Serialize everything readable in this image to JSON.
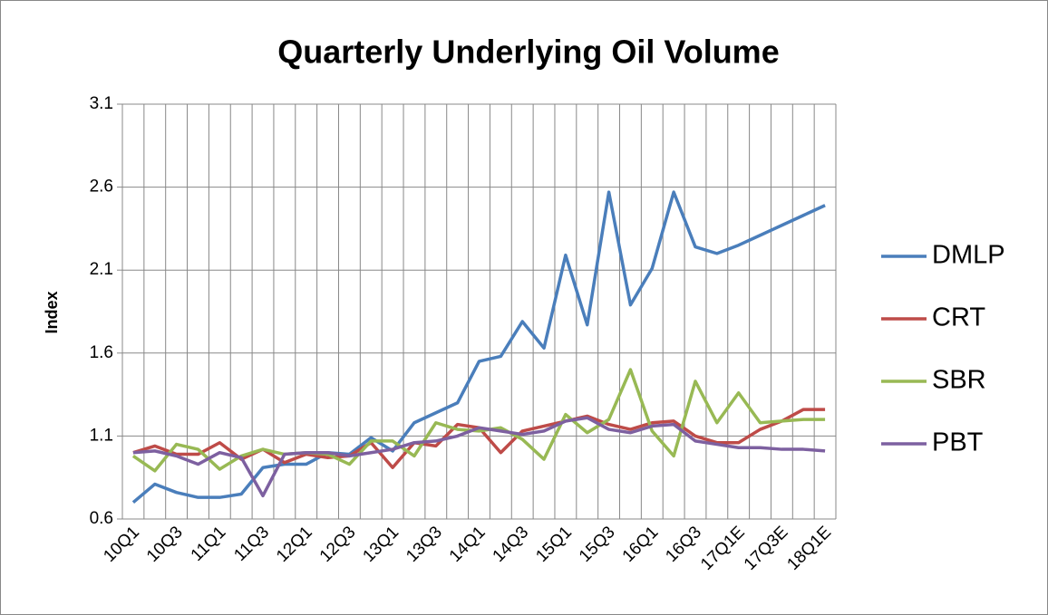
{
  "chart_data": {
    "type": "line",
    "title": "Quarterly Underlying Oil Volume",
    "y_label": "Index",
    "categories": [
      "10Q1",
      null,
      "10Q3",
      null,
      "11Q1",
      null,
      "11Q3",
      null,
      "12Q1",
      null,
      "12Q3",
      null,
      "13Q1",
      null,
      "13Q3",
      null,
      "14Q1",
      null,
      "14Q3",
      null,
      "15Q1",
      null,
      "15Q3",
      null,
      "16Q1",
      null,
      "16Q3",
      null,
      "17Q1E",
      null,
      "17Q3E",
      null,
      "18Q1E"
    ],
    "series": [
      {
        "name": "DMLP",
        "color": "#4a7ebb",
        "values": [
          0.7,
          0.81,
          0.76,
          0.73,
          0.73,
          0.75,
          0.91,
          0.93,
          0.93,
          1.0,
          0.99,
          1.09,
          1.01,
          1.18,
          1.24,
          1.3,
          1.55,
          1.58,
          1.79,
          1.63,
          2.19,
          1.77,
          2.57,
          1.89,
          2.11,
          2.57,
          2.24,
          2.2,
          2.25,
          2.31,
          2.37,
          2.43,
          2.49
        ]
      },
      {
        "name": "CRT",
        "color": "#be4b48",
        "values": [
          1.0,
          1.04,
          0.99,
          0.99,
          1.06,
          0.96,
          1.02,
          0.94,
          0.99,
          0.97,
          0.98,
          1.06,
          0.91,
          1.06,
          1.04,
          1.17,
          1.15,
          1.0,
          1.13,
          1.16,
          1.19,
          1.22,
          1.17,
          1.14,
          1.18,
          1.19,
          1.1,
          1.06,
          1.06,
          1.14,
          1.19,
          1.26,
          1.26
        ]
      },
      {
        "name": "SBR",
        "color": "#98b954",
        "values": [
          0.98,
          0.89,
          1.05,
          1.02,
          0.9,
          0.98,
          1.02,
          0.99,
          1.0,
          0.99,
          0.93,
          1.07,
          1.07,
          0.98,
          1.18,
          1.14,
          1.13,
          1.15,
          1.08,
          0.96,
          1.23,
          1.12,
          1.2,
          1.5,
          1.13,
          0.98,
          1.43,
          1.18,
          1.36,
          1.18,
          1.19,
          1.2,
          1.2
        ]
      },
      {
        "name": "PBT",
        "color": "#7d60a0",
        "values": [
          1.0,
          1.01,
          0.98,
          0.93,
          1.0,
          0.97,
          0.74,
          0.99,
          1.0,
          1.0,
          0.98,
          1.0,
          1.02,
          1.06,
          1.07,
          1.1,
          1.15,
          1.13,
          1.11,
          1.13,
          1.19,
          1.21,
          1.14,
          1.12,
          1.16,
          1.17,
          1.07,
          1.05,
          1.03,
          1.03,
          1.02,
          1.02,
          1.01
        ]
      }
    ],
    "ylim": [
      0.6,
      3.1
    ],
    "yticks": [
      0.6,
      1.1,
      1.6,
      2.1,
      2.6,
      3.1
    ],
    "grid": true,
    "legend": "right"
  }
}
